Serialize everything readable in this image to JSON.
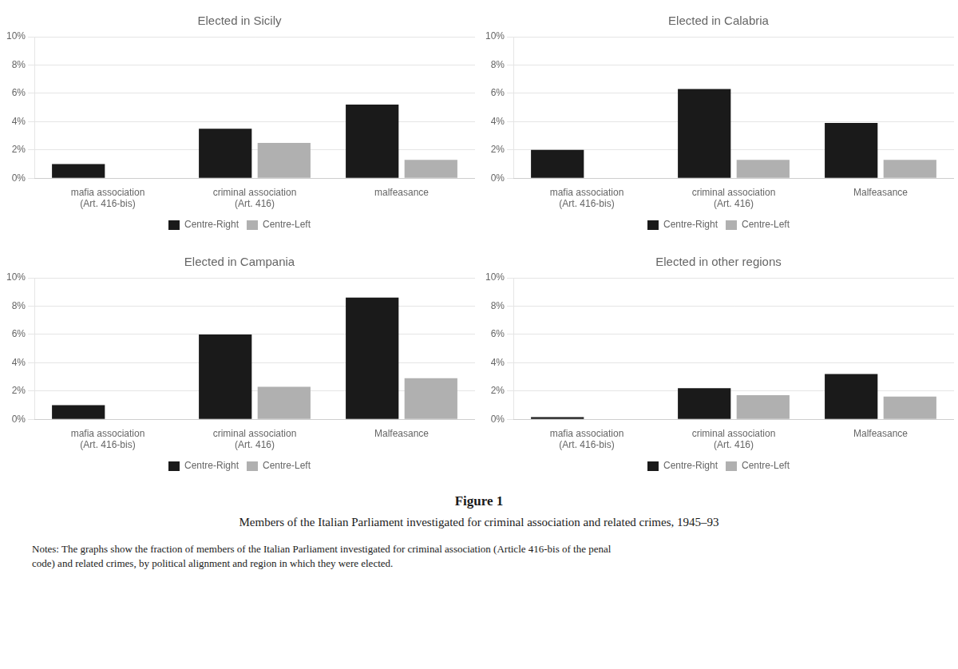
{
  "title": "Figure 1",
  "subtitle": "Members of the Italian Parliament investigated for criminal association and related crimes, 1945–93",
  "notes": "Notes: The graphs show the fraction of members of the Italian Parliament investigated for criminal association (Article 416-bis of the penal\ncode) and related crimes, by political alignment and region in which they were elected.",
  "chart_data": [
    {
      "type": "bar",
      "title": "Elected in Sicily",
      "categories": [
        "mafia association\n(Art. 416-bis)",
        "criminal association\n(Art. 416)",
        "malfeasance"
      ],
      "series": [
        {
          "name": "Centre-Right",
          "color": "#1a1a1a",
          "values": [
            1.0,
            3.5,
            5.2
          ]
        },
        {
          "name": "Centre-Left",
          "color": "#b0b0b0",
          "values": [
            0.0,
            2.5,
            1.3
          ]
        }
      ],
      "ylim": [
        0,
        10
      ],
      "yticks": [
        {
          "value": 0,
          "label": "0%"
        },
        {
          "value": 2,
          "label": "2%"
        },
        {
          "value": 4,
          "label": "4%"
        },
        {
          "value": 6,
          "label": "6%"
        },
        {
          "value": 8,
          "label": "8%"
        },
        {
          "value": 10,
          "label": "10%"
        }
      ],
      "grid": true,
      "legend": "bottom"
    },
    {
      "type": "bar",
      "title": "Elected in Calabria",
      "categories": [
        "mafia association\n(Art. 416-bis)",
        "criminal association\n(Art. 416)",
        "Malfeasance"
      ],
      "series": [
        {
          "name": "Centre-Right",
          "color": "#1a1a1a",
          "values": [
            2.0,
            6.3,
            3.9
          ]
        },
        {
          "name": "Centre-Left",
          "color": "#b0b0b0",
          "values": [
            0.0,
            1.3,
            1.3
          ]
        }
      ],
      "ylim": [
        0,
        10
      ],
      "yticks": [
        {
          "value": 0,
          "label": "0%"
        },
        {
          "value": 2,
          "label": "2%"
        },
        {
          "value": 4,
          "label": "4%"
        },
        {
          "value": 6,
          "label": "6%"
        },
        {
          "value": 8,
          "label": "8%"
        },
        {
          "value": 10,
          "label": "10%"
        }
      ],
      "grid": true,
      "legend": "bottom"
    },
    {
      "type": "bar",
      "title": "Elected in Campania",
      "categories": [
        "mafia association\n(Art. 416-bis)",
        "criminal association\n(Art. 416)",
        "Malfeasance"
      ],
      "series": [
        {
          "name": "Centre-Right",
          "color": "#1a1a1a",
          "values": [
            1.0,
            6.0,
            8.6
          ]
        },
        {
          "name": "Centre-Left",
          "color": "#b0b0b0",
          "values": [
            0.0,
            2.3,
            2.9
          ]
        }
      ],
      "ylim": [
        0,
        10
      ],
      "yticks": [
        {
          "value": 0,
          "label": "0%"
        },
        {
          "value": 2,
          "label": "2%"
        },
        {
          "value": 4,
          "label": "4%"
        },
        {
          "value": 6,
          "label": "6%"
        },
        {
          "value": 8,
          "label": "8%"
        },
        {
          "value": 10,
          "label": "10%"
        }
      ],
      "grid": true,
      "legend": "bottom"
    },
    {
      "type": "bar",
      "title": "Elected in other regions",
      "categories": [
        "mafia association\n(Art. 416-bis)",
        "criminal association\n(Art. 416)",
        "Malfeasance"
      ],
      "series": [
        {
          "name": "Centre-Right",
          "color": "#1a1a1a",
          "values": [
            0.15,
            2.2,
            3.2
          ]
        },
        {
          "name": "Centre-Left",
          "color": "#b0b0b0",
          "values": [
            0.0,
            1.7,
            1.6
          ]
        }
      ],
      "ylim": [
        0,
        10
      ],
      "yticks": [
        {
          "value": 0,
          "label": "0%"
        },
        {
          "value": 2,
          "label": "2%"
        },
        {
          "value": 4,
          "label": "4%"
        },
        {
          "value": 6,
          "label": "6%"
        },
        {
          "value": 8,
          "label": "8%"
        },
        {
          "value": 10,
          "label": "10%"
        }
      ],
      "grid": true,
      "legend": "bottom"
    }
  ]
}
